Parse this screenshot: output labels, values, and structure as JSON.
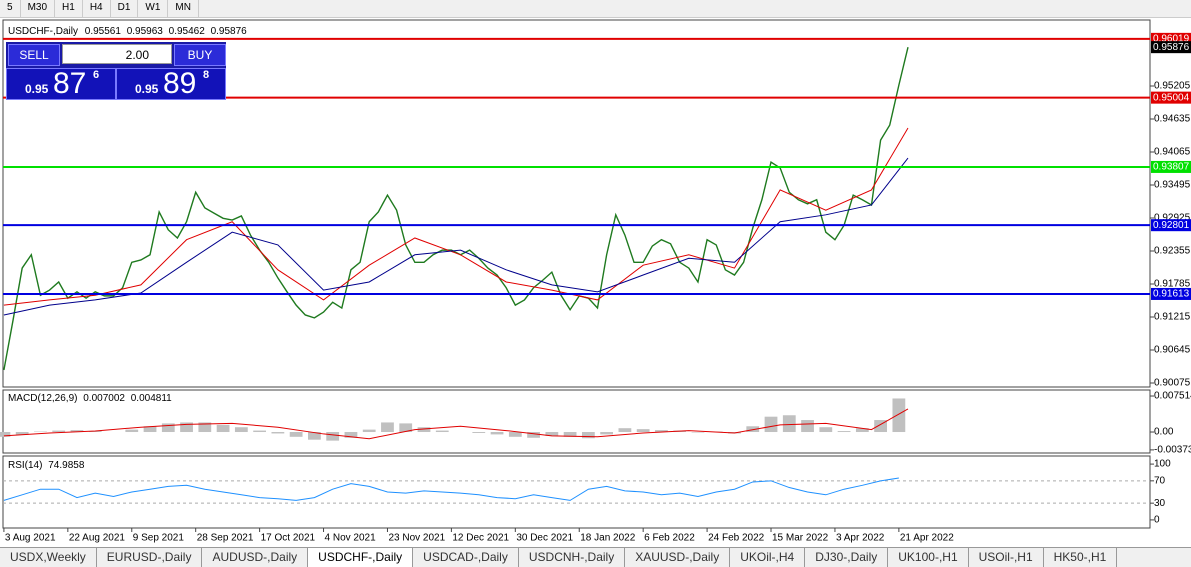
{
  "toolbar": {
    "timeframes": [
      "5",
      "M30",
      "H1",
      "H4",
      "D1",
      "W1",
      "MN"
    ]
  },
  "trade_panel": {
    "sell": "SELL",
    "buy": "BUY",
    "volume": "2.00",
    "bid": {
      "big": "0.95",
      "pips": "87",
      "point": "6"
    },
    "ask": {
      "big": "0.95",
      "pips": "89",
      "point": "8"
    }
  },
  "chart_data": [
    {
      "type": "line",
      "title": "USDCHF-,Daily",
      "ohlc": [
        0.95561,
        0.95963,
        0.95462,
        0.95876
      ],
      "current_price": 0.95876,
      "levels": [
        {
          "value": 0.96019,
          "color": "#e00000"
        },
        {
          "value": 0.95004,
          "color": "#e00000"
        },
        {
          "value": 0.93807,
          "color": "#00e000"
        },
        {
          "value": 0.92801,
          "color": "#0000e0"
        },
        {
          "value": 0.91613,
          "color": "#0000e0"
        }
      ],
      "xlim": [
        -0.2,
        251
      ],
      "ylim": [
        0.90006,
        0.96345
      ],
      "xticks": [
        {
          "value": 0,
          "label": "3 Aug 2021"
        },
        {
          "value": 14,
          "label": "22 Aug 2021"
        },
        {
          "value": 28,
          "label": "9 Sep 2021"
        },
        {
          "value": 42,
          "label": "28 Sep 2021"
        },
        {
          "value": 56,
          "label": "17 Oct 2021"
        },
        {
          "value": 70,
          "label": "4 Nov 2021"
        },
        {
          "value": 84,
          "label": "23 Nov 2021"
        },
        {
          "value": 98,
          "label": "12 Dec 2021"
        },
        {
          "value": 112,
          "label": "30 Dec 2021"
        },
        {
          "value": 126,
          "label": "18 Jan 2022"
        },
        {
          "value": 140,
          "label": "6 Feb 2022"
        },
        {
          "value": 154,
          "label": "24 Feb 2022"
        },
        {
          "value": 168,
          "label": "15 Mar 2022"
        },
        {
          "value": 182,
          "label": "3 Apr 2022"
        },
        {
          "value": 196,
          "label": "21 Apr 2022"
        }
      ],
      "yticks": [
        0.90075,
        0.90645,
        0.91215,
        0.91785,
        0.92355,
        0.92925,
        0.93495,
        0.94065,
        0.94635,
        0.95205
      ],
      "series": [
        {
          "type": "line",
          "color": "#1f7a1f",
          "x": [
            0,
            2,
            4,
            6,
            8,
            10,
            12,
            14,
            16,
            18,
            20,
            22,
            24,
            26,
            28,
            30,
            32,
            34,
            36,
            38,
            40,
            42,
            44,
            46,
            48,
            50,
            52,
            54,
            56,
            58,
            60,
            62,
            64,
            66,
            68,
            70,
            72,
            74,
            76,
            78,
            80,
            82,
            84,
            86,
            88,
            90,
            92,
            94,
            96,
            98,
            100,
            102,
            104,
            106,
            108,
            110,
            112,
            114,
            116,
            118,
            120,
            122,
            124,
            126,
            128,
            130,
            132,
            134,
            136,
            138,
            140,
            142,
            144,
            146,
            148,
            150,
            152,
            154,
            156,
            158,
            160,
            162,
            164,
            166,
            168,
            170,
            172,
            174,
            176,
            178,
            180,
            182,
            184,
            186,
            188,
            190,
            192,
            194,
            196,
            198
          ],
          "values": [
            0.903,
            0.9116,
            0.9206,
            0.9229,
            0.9159,
            0.9168,
            0.9182,
            0.9154,
            0.9165,
            0.9154,
            0.9165,
            0.9158,
            0.9158,
            0.9172,
            0.9216,
            0.922,
            0.9229,
            0.9303,
            0.9272,
            0.9258,
            0.9286,
            0.9337,
            0.931,
            0.9301,
            0.9292,
            0.9289,
            0.9296,
            0.9263,
            0.9237,
            0.9216,
            0.9189,
            0.9165,
            0.9142,
            0.9125,
            0.912,
            0.913,
            0.9147,
            0.9137,
            0.9203,
            0.9216,
            0.9286,
            0.9303,
            0.9332,
            0.9306,
            0.9246,
            0.9216,
            0.9216,
            0.9229,
            0.9237,
            0.9237,
            0.9229,
            0.9237,
            0.9223,
            0.9206,
            0.9194,
            0.9172,
            0.9142,
            0.9151,
            0.9172,
            0.9185,
            0.9199,
            0.9159,
            0.9134,
            0.9158,
            0.9154,
            0.9137,
            0.9229,
            0.9298,
            0.9263,
            0.9216,
            0.9216,
            0.9244,
            0.9255,
            0.9248,
            0.9216,
            0.9206,
            0.9182,
            0.9255,
            0.9246,
            0.9203,
            0.9194,
            0.9216,
            0.9275,
            0.9324,
            0.9389,
            0.9379,
            0.9337,
            0.9324,
            0.9317,
            0.9324,
            0.9268,
            0.9255,
            0.928,
            0.9332,
            0.9324,
            0.9315,
            0.9427,
            0.9453,
            0.9522,
            0.95876
          ]
        },
        {
          "type": "line",
          "color": "#e00000",
          "x": [
            0,
            10,
            20,
            30,
            40,
            50,
            60,
            70,
            80,
            90,
            100,
            110,
            120,
            130,
            140,
            150,
            160,
            170,
            180,
            190,
            198
          ],
          "values": [
            0.9142,
            0.9151,
            0.9159,
            0.9177,
            0.9255,
            0.9286,
            0.9203,
            0.9151,
            0.9211,
            0.9258,
            0.9229,
            0.9182,
            0.9168,
            0.9151,
            0.9211,
            0.9229,
            0.9206,
            0.9341,
            0.9306,
            0.9341,
            0.9448
          ]
        },
        {
          "type": "line",
          "color": "#00008b",
          "x": [
            0,
            10,
            20,
            30,
            40,
            50,
            60,
            70,
            80,
            90,
            100,
            110,
            120,
            130,
            140,
            150,
            160,
            170,
            180,
            190,
            198
          ],
          "values": [
            0.9125,
            0.9142,
            0.9151,
            0.9163,
            0.9216,
            0.9268,
            0.9246,
            0.9168,
            0.9182,
            0.9229,
            0.9237,
            0.9203,
            0.9177,
            0.9165,
            0.9194,
            0.9223,
            0.9216,
            0.9286,
            0.9298,
            0.9315,
            0.9396
          ]
        }
      ]
    },
    {
      "type": "macd",
      "title": "MACD(12,26,9)",
      "readout": [
        0.007002,
        0.004811
      ],
      "xlim": [
        -0.2,
        251
      ],
      "ylim": [
        -0.00438,
        0.00877
      ],
      "yticks": [
        0.007514,
        {
          "value": 0,
          "label": "0.00"
        },
        -0.00373
      ],
      "series": [
        {
          "type": "bar",
          "color": "#c0c0c0",
          "x": [
            0,
            4,
            8,
            12,
            16,
            20,
            24,
            28,
            32,
            36,
            40,
            44,
            48,
            52,
            56,
            60,
            64,
            68,
            72,
            76,
            80,
            84,
            88,
            92,
            96,
            100,
            104,
            108,
            112,
            116,
            120,
            124,
            128,
            132,
            136,
            140,
            144,
            148,
            152,
            156,
            160,
            164,
            168,
            172,
            176,
            180,
            184,
            188,
            192,
            196
          ],
          "values": [
            -0.001,
            -0.0006,
            0.0001,
            0.0003,
            0.0004,
            0.0002,
            0.0,
            0.0005,
            0.0012,
            0.0018,
            0.002,
            0.002,
            0.0015,
            0.001,
            0.0003,
            -0.0003,
            -0.001,
            -0.0016,
            -0.0018,
            -0.0012,
            0.0005,
            0.002,
            0.0018,
            0.001,
            0.0003,
            0.0,
            -0.0002,
            -0.0005,
            -0.001,
            -0.0012,
            -0.0008,
            -0.001,
            -0.0013,
            -0.0005,
            0.0008,
            0.0006,
            0.0004,
            0.0003,
            -0.0001,
            0.0001,
            -0.0003,
            0.0012,
            0.0032,
            0.0035,
            0.0025,
            0.001,
            0.0002,
            0.0008,
            0.0025,
            0.007002
          ]
        },
        {
          "type": "line",
          "color": "#e00000",
          "x": [
            0,
            10,
            20,
            30,
            40,
            50,
            60,
            70,
            80,
            90,
            100,
            110,
            120,
            130,
            140,
            150,
            160,
            170,
            180,
            190,
            198
          ],
          "values": [
            -0.0008,
            -0.0002,
            0.0002,
            0.001,
            0.0016,
            0.0018,
            0.001,
            -0.0004,
            -0.0014,
            0.0005,
            0.0012,
            0.0003,
            -0.0008,
            -0.001,
            -0.0002,
            0.0003,
            -0.0002,
            0.0015,
            0.0018,
            0.0005,
            0.004811
          ]
        }
      ]
    },
    {
      "type": "rsi",
      "title": "RSI(14)",
      "readout": 74.9858,
      "xlim": [
        -0.2,
        251
      ],
      "ylim": [
        -14.5,
        114.5
      ],
      "yticks": [
        100,
        70,
        30,
        0
      ],
      "levels": [
        70,
        30
      ],
      "series": [
        {
          "type": "line",
          "color": "#1e90ff",
          "x": [
            0,
            4,
            8,
            12,
            16,
            20,
            24,
            28,
            32,
            36,
            40,
            44,
            48,
            52,
            56,
            60,
            64,
            68,
            72,
            76,
            80,
            84,
            88,
            92,
            96,
            100,
            104,
            108,
            112,
            116,
            120,
            124,
            128,
            132,
            136,
            140,
            144,
            148,
            152,
            156,
            160,
            164,
            168,
            172,
            176,
            180,
            184,
            188,
            192,
            196
          ],
          "values": [
            35,
            45,
            55,
            55,
            40,
            48,
            42,
            50,
            55,
            60,
            62,
            55,
            50,
            45,
            40,
            38,
            35,
            40,
            55,
            65,
            60,
            50,
            48,
            52,
            50,
            48,
            45,
            40,
            38,
            45,
            40,
            35,
            55,
            60,
            52,
            50,
            45,
            48,
            42,
            50,
            55,
            68,
            70,
            58,
            50,
            45,
            55,
            62,
            70,
            74.9858
          ]
        }
      ]
    }
  ],
  "tabs": {
    "items": [
      "USDX,Weekly",
      "EURUSD-,Daily",
      "AUDUSD-,Daily",
      "USDCHF-,Daily",
      "USDCAD-,Daily",
      "USDCNH-,Daily",
      "XAUUSD-,Daily",
      "UKOil-,H4",
      "DJ30-,Daily",
      "UK100-,H1",
      "USOil-,H1",
      "HK50-,H1"
    ],
    "active": 3
  }
}
